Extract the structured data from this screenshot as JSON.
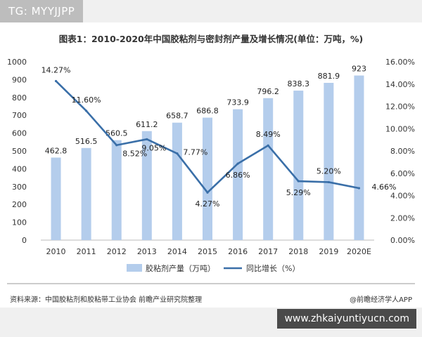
{
  "watermark_top": "TG: MYYJJPP",
  "watermark_bottom": "www.zhkaiyuntiyucn.com",
  "title": "图表1：2010-2020年中国胶粘剂与密封剂产量及增长情况(单位：万吨，%)",
  "source": "资料来源：中国胶粘剂和胶粘带工业协会 前瞻产业研究院整理",
  "credit": "@前瞻经济学人APP",
  "colors": {
    "bar": "#b4cdec",
    "line": "#3a6fa8"
  },
  "chart_data": {
    "type": "bar",
    "categories": [
      "2010",
      "2011",
      "2012",
      "2013",
      "2014",
      "2015",
      "2016",
      "2017",
      "2018",
      "2019",
      "2020E"
    ],
    "series": [
      {
        "name": "胶粘剂产量（万吨）",
        "type": "bar",
        "axis": "left",
        "values": [
          462.8,
          516.5,
          560.5,
          611.2,
          658.7,
          686.8,
          733.9,
          796.2,
          838.3,
          881.9,
          923
        ],
        "labels": [
          "462.8",
          "516.5",
          "560.5",
          "611.2",
          "658.7",
          "686.8",
          "733.9",
          "796.2",
          "838.3",
          "881.9",
          "923"
        ]
      },
      {
        "name": "同比增长（%）",
        "type": "line",
        "axis": "right",
        "values": [
          14.27,
          11.6,
          8.52,
          9.05,
          7.77,
          4.27,
          6.86,
          8.49,
          5.29,
          5.2,
          4.66
        ],
        "labels": [
          "14.27%",
          "11.60%",
          "8.52%",
          "9.05%",
          "7.77%",
          "4.27%",
          "6.86%",
          "8.49%",
          "5.29%",
          "5.20%",
          "4.66%"
        ]
      }
    ],
    "ylim_left": [
      0,
      1000
    ],
    "yticks_left": [
      "0",
      "100",
      "200",
      "300",
      "400",
      "500",
      "600",
      "700",
      "800",
      "900",
      "1000"
    ],
    "ylim_right": [
      0,
      16
    ],
    "yticks_right": [
      "0.00%",
      "2.00%",
      "4.00%",
      "6.00%",
      "8.00%",
      "10.00%",
      "12.00%",
      "14.00%",
      "16.00%"
    ],
    "grid": false,
    "legend": "bottom"
  }
}
